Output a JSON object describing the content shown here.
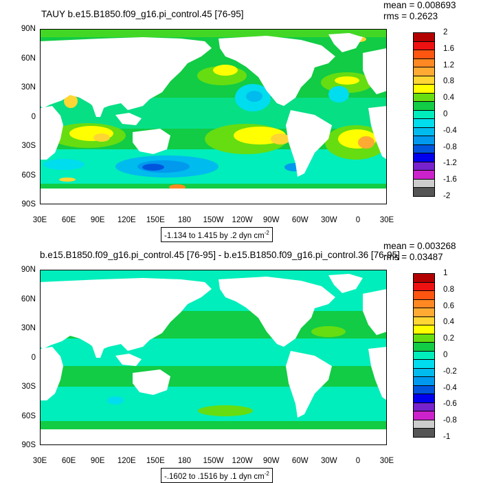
{
  "top_panel": {
    "title": "TAUY b.e15.B1850.f09_g16.pi_control.45 [76-95]",
    "mean": "mean = 0.008693",
    "rms": "rms = 0.2623",
    "range_text": "-1.134 to 1.415 by .2 dyn cm",
    "range_sup": "-2",
    "colorbar_labels": [
      "2",
      "1.6",
      "1.2",
      "0.8",
      "0.4",
      "0",
      "-0.4",
      "-0.8",
      "-1.2",
      "-1.6",
      "-2"
    ]
  },
  "bottom_panel": {
    "title": "b.e15.B1850.f09_g16.pi_control.45 [76-95] - b.e15.B1850.f09_g16.pi_control.36 [76-95]",
    "mean": "mean = 0.003268",
    "rms": "rms = 0.03487",
    "range_text": "-.1602 to .1516 by .1 dyn cm",
    "range_sup": "-2",
    "colorbar_labels": [
      "1",
      "0.8",
      "0.6",
      "0.4",
      "0.2",
      "0",
      "-0.2",
      "-0.4",
      "-0.6",
      "-0.8",
      "-1"
    ]
  },
  "axes": {
    "lat_labels": [
      "90N",
      "60N",
      "30N",
      "0",
      "30S",
      "60S",
      "90S"
    ],
    "lon_labels": [
      "30E",
      "60E",
      "90E",
      "120E",
      "150E",
      "180",
      "150W",
      "120W",
      "90W",
      "60W",
      "30W",
      "0",
      "30E"
    ]
  },
  "colors": {
    "palette": [
      "#b30000",
      "#ee1111",
      "#ff5511",
      "#ff8822",
      "#ffaa33",
      "#ffd633",
      "#ffff00",
      "#66dd11",
      "#11cc44",
      "#00eebb",
      "#00ddee",
      "#00bbee",
      "#0099ee",
      "#0055dd",
      "#0000ee",
      "#7722cc",
      "#cc22cc",
      "#cccccc",
      "#555555"
    ],
    "land": "#ffffff",
    "ocean_zero": "#33cc55"
  }
}
